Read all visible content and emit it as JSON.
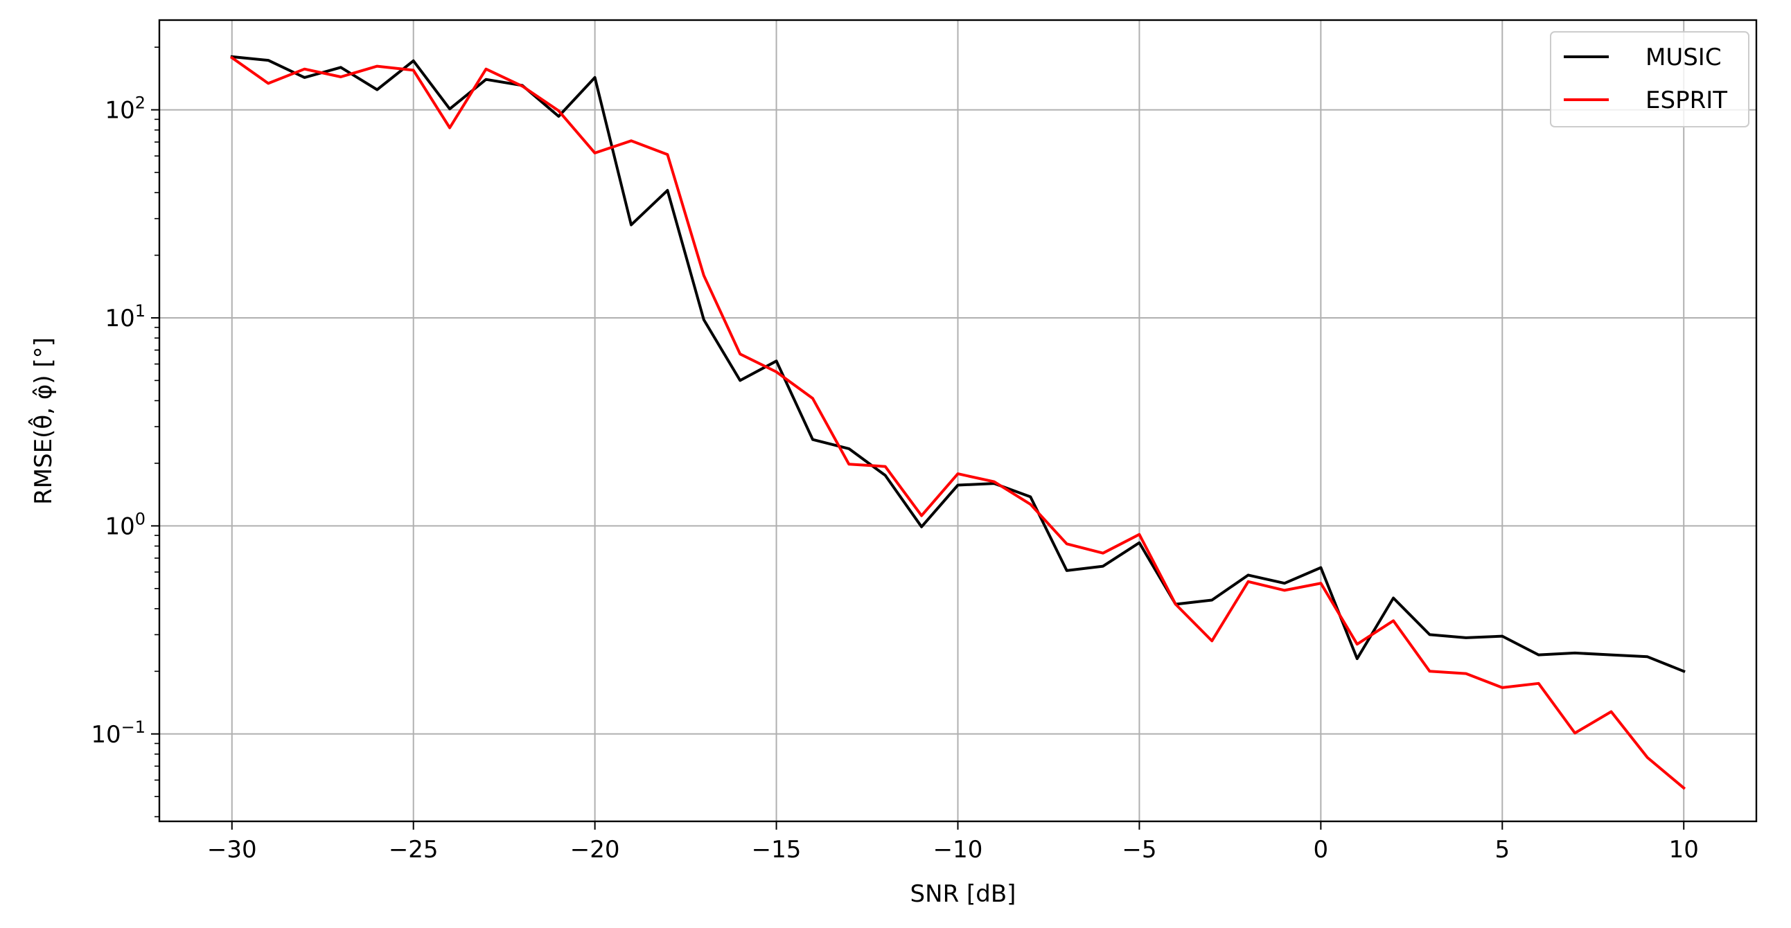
{
  "chart_data": {
    "type": "line",
    "xlabel": "SNR [dB]",
    "ylabel": "RMSE(θ̂, φ̂) [°]",
    "xlim": [
      -32,
      12
    ],
    "ylim": [
      0.038,
      270
    ],
    "yscale": "log",
    "grid": true,
    "legend_position": "top-right",
    "x_ticks": [
      -30,
      -25,
      -20,
      -15,
      -10,
      -5,
      0,
      5,
      10
    ],
    "x_tick_labels": [
      "−30",
      "−25",
      "−20",
      "−15",
      "−10",
      "−5",
      "0",
      "5",
      "10"
    ],
    "y_ticks": [
      {
        "value": 100,
        "base": "10",
        "exp": "2"
      },
      {
        "value": 10,
        "base": "10",
        "exp": "1"
      },
      {
        "value": 1,
        "base": "10",
        "exp": "0"
      },
      {
        "value": 0.1,
        "base": "10",
        "exp": "−1"
      }
    ],
    "x": [
      -30,
      -29,
      -28,
      -27,
      -26,
      -25,
      -24,
      -23,
      -22,
      -21,
      -20,
      -19,
      -18,
      -17,
      -16,
      -15,
      -14,
      -13,
      -12,
      -11,
      -10,
      -9,
      -8,
      -7,
      -6,
      -5,
      -4,
      -3,
      -2,
      -1,
      0,
      1,
      2,
      3,
      4,
      5,
      6,
      7,
      8,
      9,
      10
    ],
    "series": [
      {
        "name": "MUSIC",
        "color": "#000000",
        "values": [
          180,
          173,
          143,
          160,
          125,
          172,
          101,
          140,
          131,
          93,
          143,
          28,
          41,
          9.8,
          5.0,
          6.2,
          2.6,
          2.35,
          1.75,
          0.99,
          1.57,
          1.6,
          1.38,
          0.61,
          0.64,
          0.83,
          0.42,
          0.44,
          0.58,
          0.53,
          0.63,
          0.23,
          0.45,
          0.3,
          0.29,
          0.295,
          0.24,
          0.245,
          0.24,
          0.235,
          0.2
        ]
      },
      {
        "name": "ESPRIT",
        "color": "#ff0000",
        "values": [
          178,
          134,
          157,
          144,
          162,
          155,
          82,
          157,
          130,
          99,
          62,
          71,
          61,
          16,
          6.7,
          5.5,
          4.1,
          1.98,
          1.93,
          1.12,
          1.78,
          1.63,
          1.27,
          0.82,
          0.74,
          0.91,
          0.42,
          0.28,
          0.54,
          0.49,
          0.53,
          0.27,
          0.35,
          0.2,
          0.195,
          0.167,
          0.175,
          0.101,
          0.128,
          0.077,
          0.055
        ]
      }
    ]
  }
}
